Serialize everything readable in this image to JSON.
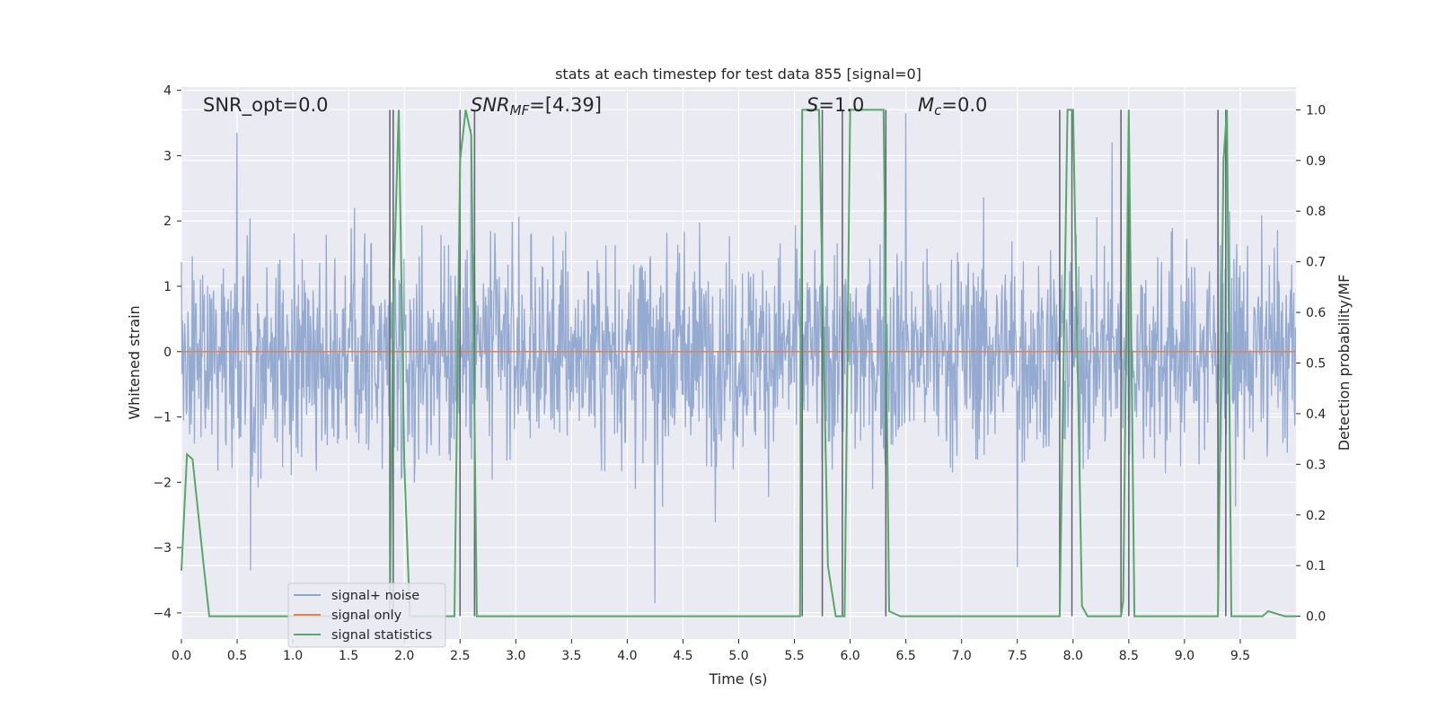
{
  "chart_data": {
    "type": "line",
    "title": "stats at each timestep for test data 855 [signal=0]",
    "xlabel": "Time (s)",
    "ylabel": "Whitened strain",
    "ylabel_right": "Detection probability/MF",
    "xlim": [
      0,
      10
    ],
    "ylim": [
      -4.4,
      4.05
    ],
    "ylim_right": [
      -0.045,
      1.045
    ],
    "x_ticks": [
      0.0,
      0.5,
      1.0,
      1.5,
      2.0,
      2.5,
      3.0,
      3.5,
      4.0,
      4.5,
      5.0,
      5.5,
      6.0,
      6.5,
      7.0,
      7.5,
      8.0,
      8.5,
      9.0,
      9.5
    ],
    "x_tick_labels": [
      "0.0",
      "0.5",
      "1.0",
      "1.5",
      "2.0",
      "2.5",
      "3.0",
      "3.5",
      "4.0",
      "4.5",
      "5.0",
      "5.5",
      "6.0",
      "6.5",
      "7.0",
      "7.5",
      "8.0",
      "8.5",
      "9.0",
      "9.5"
    ],
    "y_ticks": [
      4,
      3,
      2,
      1,
      0,
      -1,
      -2,
      -3,
      -4
    ],
    "y_tick_labels": [
      "4",
      "3",
      "2",
      "1",
      "0",
      "−1",
      "−2",
      "−3",
      "−4"
    ],
    "y_right_ticks": [
      1.0,
      0.9,
      0.8,
      0.7,
      0.6,
      0.5,
      0.4,
      0.3,
      0.2,
      0.1,
      0.0
    ],
    "y_right_tick_labels": [
      "1.0",
      "0.9",
      "0.8",
      "0.7",
      "0.6",
      "0.5",
      "0.4",
      "0.3",
      "0.2",
      "0.1",
      "0.0"
    ],
    "grid": true,
    "legend_position": "lower-left",
    "annotations": {
      "snr_opt": "SNR_opt=0.0",
      "snr_mf": "SNR",
      "snr_mf_sub": "MF",
      "snr_mf_value": "=[4.39]",
      "s_label": "S",
      "s_value": "=1.0",
      "mc_label": "M",
      "mc_sub": "c",
      "mc_value": "=0.0"
    },
    "series": [
      {
        "name": "signal+ noise",
        "color": "#8fa6cf",
        "description": "dense whitened-noise time series, amplitude mostly within ±2, occasional peaks",
        "notable_peaks": [
          [
            0.5,
            3.35
          ],
          [
            0.62,
            -3.35
          ],
          [
            2.6,
            3.4
          ],
          [
            4.25,
            -3.85
          ],
          [
            6.5,
            3.65
          ],
          [
            7.5,
            -3.3
          ],
          [
            8.35,
            3.2
          ]
        ]
      },
      {
        "name": "signal only",
        "color": "#dd8452",
        "x": [
          0,
          10
        ],
        "y": [
          0,
          0
        ]
      },
      {
        "name": "signal statistics",
        "color": "#55a868",
        "axis": "right",
        "x": [
          0.0,
          0.05,
          0.1,
          0.2,
          0.25,
          1.87,
          1.9,
          1.95,
          2.0,
          2.05,
          2.45,
          2.5,
          2.55,
          2.6,
          2.65,
          5.55,
          5.57,
          5.72,
          5.8,
          5.87,
          5.95,
          6.0,
          6.3,
          6.35,
          6.45,
          7.88,
          7.95,
          8.0,
          8.08,
          8.13,
          8.43,
          8.45,
          8.5,
          8.55,
          9.3,
          9.35,
          9.38,
          9.42,
          9.7,
          9.75,
          9.9,
          10.0
        ],
        "y": [
          0.09,
          0.32,
          0.31,
          0.1,
          0.0,
          0.0,
          0.62,
          1.0,
          0.3,
          0.0,
          0.0,
          0.9,
          1.0,
          0.95,
          0.0,
          0.0,
          1.0,
          1.0,
          0.1,
          0.0,
          0.0,
          1.0,
          1.0,
          0.01,
          0.0,
          0.0,
          1.0,
          1.0,
          0.02,
          0.0,
          0.0,
          0.03,
          1.0,
          0.0,
          0.0,
          0.9,
          1.0,
          0.0,
          0.0,
          0.01,
          0.0,
          0.0
        ]
      }
    ],
    "vertical_markers_x": [
      1.87,
      1.9,
      2.5,
      2.63,
      5.57,
      5.75,
      5.93,
      6.32,
      7.88,
      7.99,
      8.43,
      8.5,
      9.3,
      9.37
    ]
  }
}
